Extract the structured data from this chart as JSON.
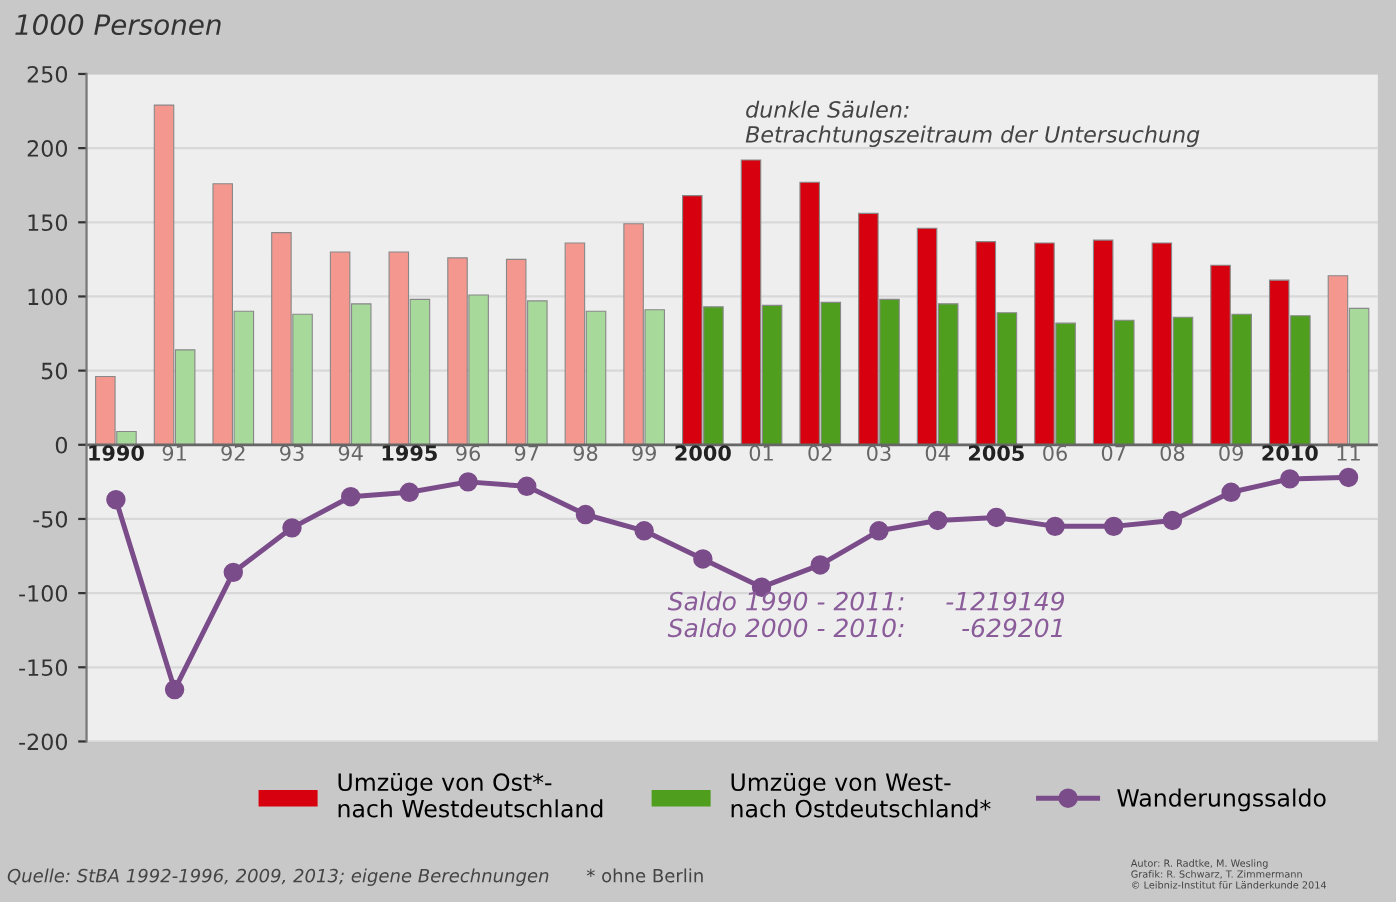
{
  "chart_data": {
    "type": "bar",
    "ylabel": "1000 Personen",
    "categories": [
      "1990",
      "91",
      "92",
      "93",
      "94",
      "1995",
      "96",
      "97",
      "98",
      "99",
      "2000",
      "01",
      "02",
      "03",
      "04",
      "2005",
      "06",
      "07",
      "08",
      "09",
      "2010",
      "11"
    ],
    "series": [
      {
        "name": "Umzüge von Ost*-\nnach Westdeutschland",
        "color": "#d7000f",
        "colors": [
          "#f4978e",
          "#f4978e",
          "#f4978e",
          "#f4978e",
          "#f4978e",
          "#f4978e",
          "#f4978e",
          "#f4978e",
          "#f4978e",
          "#f4978e",
          "#d7000f",
          "#d7000f",
          "#d7000f",
          "#d7000f",
          "#d7000f",
          "#d7000f",
          "#d7000f",
          "#d7000f",
          "#d7000f",
          "#d7000f",
          "#d7000f",
          "#f4978e"
        ],
        "values": [
          46,
          229,
          176,
          143,
          130,
          130,
          126,
          125,
          136,
          149,
          168,
          192,
          177,
          156,
          146,
          137,
          136,
          138,
          136,
          121,
          111,
          114
        ]
      },
      {
        "name": "Umzüge von West-\nnach Ostdeutschland*",
        "color": "#4f9e1e",
        "colors": [
          "#a6d99a",
          "#a6d99a",
          "#a6d99a",
          "#a6d99a",
          "#a6d99a",
          "#a6d99a",
          "#a6d99a",
          "#a6d99a",
          "#a6d99a",
          "#a6d99a",
          "#4f9e1e",
          "#4f9e1e",
          "#4f9e1e",
          "#4f9e1e",
          "#4f9e1e",
          "#4f9e1e",
          "#4f9e1e",
          "#4f9e1e",
          "#4f9e1e",
          "#4f9e1e",
          "#4f9e1e",
          "#a6d99a"
        ],
        "values": [
          9,
          64,
          90,
          88,
          95,
          98,
          101,
          97,
          90,
          91,
          93,
          94,
          96,
          98,
          95,
          89,
          82,
          84,
          86,
          88,
          87,
          92
        ]
      },
      {
        "name": "Wanderungssaldo",
        "type": "line",
        "color": "#7b4c8a",
        "marker": "circle",
        "values": [
          -37,
          -165,
          -86,
          -56,
          -35,
          -32,
          -25,
          -28,
          -47,
          -58,
          -77,
          -96,
          -81,
          -58,
          -51,
          -49,
          -55,
          -55,
          -51,
          -32,
          -23,
          -22
        ]
      }
    ],
    "ylim": [
      -200,
      250
    ],
    "yticks": [
      -200,
      -150,
      -100,
      -50,
      0,
      50,
      100,
      150,
      200,
      250
    ],
    "grid": "y",
    "legend": "bottom",
    "annotations": [
      "dunkle Säulen:\nBetrachtungszeitraum der Untersuchung",
      "Saldo 1990 - 2011:     -1219149",
      "Saldo 2000 - 2010:       -629201",
      "Quelle: StBA 1992-1996, 2009, 2013; eigene Berechnungen",
      "* ohne Berlin",
      "Autor: R. Radtke, M. Wesling\nGrafik: R. Schwarz, T. Zimmermann\n© Leibniz-Institut für Länderkunde 2014"
    ]
  }
}
